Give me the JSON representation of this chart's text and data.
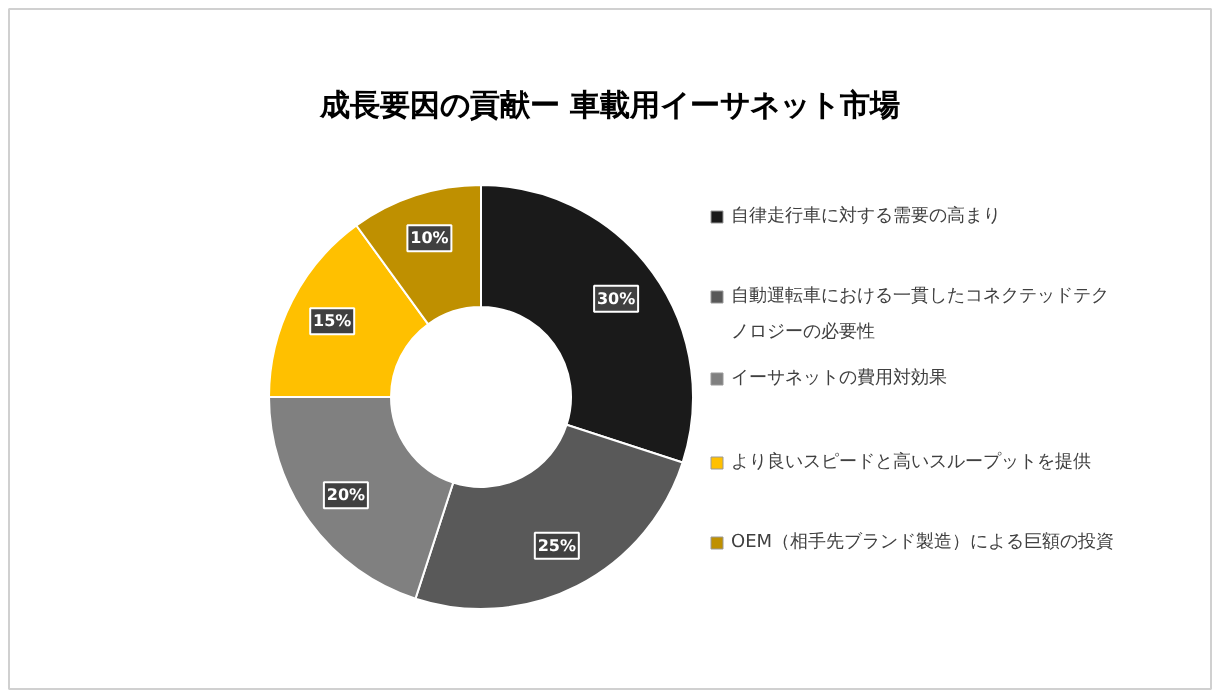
{
  "chart_data": {
    "type": "donut",
    "title": "成長要因の貢献ー 車載用イーサネット市場",
    "categories": [
      "自律走行車に対する需要の高まり",
      "自動運転車における一貫したコネクテッドテクノロジーの必要性",
      "イーサネットの費用対効果",
      "より良いスピードと高いスループットを提供",
      "OEM（相手先ブランド製造）による巨額の投資"
    ],
    "values": [
      30,
      25,
      20,
      15,
      10
    ],
    "colors": [
      "#1a1a1a",
      "#595959",
      "#808080",
      "#ffc000",
      "#bf9000"
    ],
    "value_labels": [
      "30%",
      "25%",
      "20%",
      "15%",
      "10%"
    ],
    "legend": "right"
  }
}
